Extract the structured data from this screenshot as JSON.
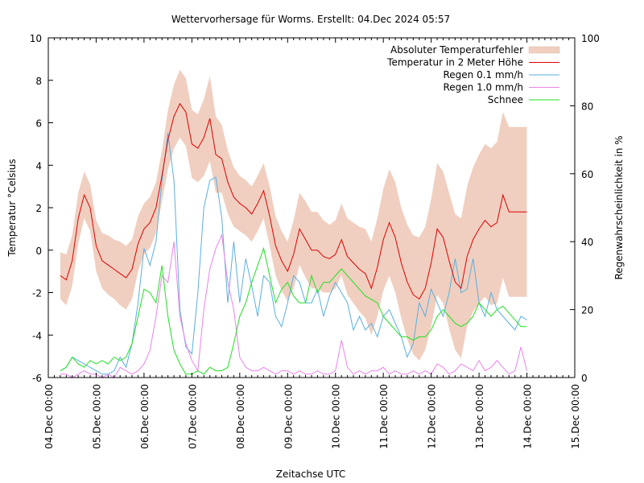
{
  "chart_data": {
    "type": "line",
    "title": "Wettervorhersage für Worms. Erstellt: 04.Dec 2024 05:57",
    "xlabel": "Zeitachse UTC",
    "ylabel": "Temperatur °Celsius",
    "y2label": "Regenwahrscheinlichkeit in %",
    "ylim": [
      -6,
      10
    ],
    "y2lim": [
      0,
      100
    ],
    "yticks": [
      "-6",
      "-4",
      "-2",
      "0",
      "2",
      "4",
      "6",
      "8",
      "10"
    ],
    "y2ticks": [
      "0",
      "20",
      "40",
      "60",
      "80",
      "100"
    ],
    "xlim_days": [
      0,
      11
    ],
    "xticks": [
      "04.Dec 00:00",
      "05.Dec 00:00",
      "06.Dec 00:00",
      "07.Dec 00:00",
      "08.Dec 00:00",
      "09.Dec 00:00",
      "10.Dec 00:00",
      "11.Dec 00:00",
      "12.Dec 00:00",
      "13.Dec 00:00",
      "14.Dec 00:00",
      "15.Dec 00:00"
    ],
    "grid": false,
    "legend_position": "top-right",
    "x_start_hours": 6,
    "x_step_hours": 3,
    "legend": [
      {
        "name": "Absoluter Temperaturfehler",
        "kind": "band",
        "color": "#f0cfc0"
      },
      {
        "name": "Temperatur in 2 Meter Höhe",
        "kind": "line",
        "color": "#e00000"
      },
      {
        "name": "Regen 0.1 mm/h",
        "kind": "line",
        "color": "#5aafe0"
      },
      {
        "name": "Regen 1.0 mm/h",
        "kind": "line",
        "color": "#ec82ec"
      },
      {
        "name": "Schnee",
        "kind": "line",
        "color": "#20e020"
      }
    ],
    "series": [
      {
        "name": "Temperatur in 2 Meter Höhe",
        "axis": "y",
        "values": [
          -1.2,
          -1.4,
          -0.5,
          1.5,
          2.6,
          2.0,
          0.2,
          -0.5,
          -0.7,
          -0.9,
          -1.1,
          -1.3,
          -0.9,
          0.3,
          1.0,
          1.3,
          2.0,
          3.5,
          5.2,
          6.3,
          6.9,
          6.5,
          5.0,
          4.8,
          5.3,
          6.2,
          4.5,
          4.3,
          3.2,
          2.5,
          2.2,
          2.0,
          1.7,
          2.2,
          2.8,
          1.6,
          0.2,
          -0.5,
          -1.0,
          -0.2,
          1.0,
          0.5,
          0.0,
          0.0,
          -0.3,
          -0.4,
          -0.2,
          0.5,
          -0.3,
          -0.6,
          -0.9,
          -1.1,
          -1.8,
          -0.8,
          0.5,
          1.3,
          0.6,
          -0.6,
          -1.5,
          -2.1,
          -2.3,
          -1.8,
          -0.6,
          1.0,
          0.6,
          -0.5,
          -1.5,
          -1.8,
          -0.3,
          0.5,
          1.0,
          1.4,
          1.1,
          1.3,
          2.6,
          1.8,
          1.8,
          1.8,
          1.8
        ]
      },
      {
        "name": "Absoluter Temperaturfehler",
        "axis": "y",
        "values": [
          1.1,
          1.2,
          1.2,
          1.2,
          1.1,
          1.1,
          1.2,
          1.3,
          1.4,
          1.4,
          1.5,
          1.5,
          1.4,
          1.3,
          1.2,
          1.2,
          1.2,
          1.2,
          1.4,
          1.5,
          1.6,
          1.6,
          1.6,
          1.6,
          1.8,
          2.0,
          1.8,
          1.6,
          1.5,
          1.4,
          1.3,
          1.3,
          1.3,
          1.3,
          1.3,
          1.4,
          1.4,
          1.4,
          1.4,
          1.6,
          1.7,
          1.8,
          1.8,
          1.8,
          1.7,
          1.6,
          1.6,
          1.7,
          1.8,
          1.9,
          2.0,
          2.1,
          2.2,
          2.3,
          2.4,
          2.5,
          2.6,
          2.6,
          2.7,
          2.8,
          2.9,
          2.9,
          3.0,
          3.1,
          3.1,
          3.2,
          3.2,
          3.3,
          3.3,
          3.4,
          3.5,
          3.6,
          3.7,
          3.8,
          3.9,
          4.0,
          4.0,
          4.0,
          4.0
        ]
      },
      {
        "name": "Regen 0.1 mm/h",
        "axis": "y2",
        "values": [
          2,
          3,
          6,
          5,
          4,
          3,
          2,
          1,
          1,
          2,
          6,
          3,
          10,
          22,
          38,
          33,
          40,
          58,
          72,
          58,
          20,
          9,
          7,
          25,
          50,
          58,
          59,
          47,
          22,
          40,
          22,
          35,
          27,
          18,
          30,
          28,
          18,
          15,
          22,
          30,
          28,
          22,
          22,
          26,
          18,
          24,
          28,
          25,
          22,
          14,
          18,
          14,
          16,
          12,
          18,
          20,
          16,
          12,
          6,
          10,
          22,
          18,
          26,
          22,
          18,
          25,
          35,
          25,
          26,
          35,
          22,
          18,
          25,
          20,
          18,
          16,
          14,
          18,
          17
        ]
      },
      {
        "name": "Regen 1.0 mm/h",
        "axis": "y2",
        "values": [
          1,
          1,
          0,
          1,
          2,
          1,
          1,
          0,
          1,
          0,
          3,
          2,
          1,
          2,
          4,
          8,
          18,
          30,
          28,
          40,
          18,
          10,
          5,
          2,
          20,
          32,
          38,
          42,
          28,
          20,
          6,
          3,
          2,
          2,
          3,
          2,
          1,
          2,
          2,
          1,
          2,
          1,
          1,
          2,
          1,
          1,
          2,
          11,
          3,
          1,
          2,
          1,
          2,
          2,
          3,
          1,
          2,
          1,
          1,
          2,
          1,
          2,
          1,
          4,
          3,
          1,
          2,
          4,
          3,
          2,
          5,
          2,
          3,
          5,
          3,
          1,
          2,
          9,
          2
        ]
      },
      {
        "name": "Schnee",
        "axis": "y2",
        "values": [
          2,
          3,
          6,
          4,
          3,
          5,
          4,
          5,
          4,
          6,
          5,
          6,
          10,
          18,
          26,
          25,
          22,
          33,
          18,
          8,
          4,
          1,
          1,
          2,
          1,
          3,
          2,
          2,
          3,
          10,
          18,
          22,
          28,
          33,
          38,
          30,
          22,
          26,
          28,
          24,
          22,
          22,
          30,
          25,
          28,
          28,
          30,
          32,
          30,
          28,
          26,
          24,
          23,
          22,
          18,
          16,
          14,
          12,
          12,
          11,
          12,
          12,
          14,
          18,
          20,
          18,
          16,
          15,
          16,
          18,
          22,
          20,
          18,
          20,
          21,
          19,
          17,
          15,
          15
        ]
      }
    ]
  }
}
